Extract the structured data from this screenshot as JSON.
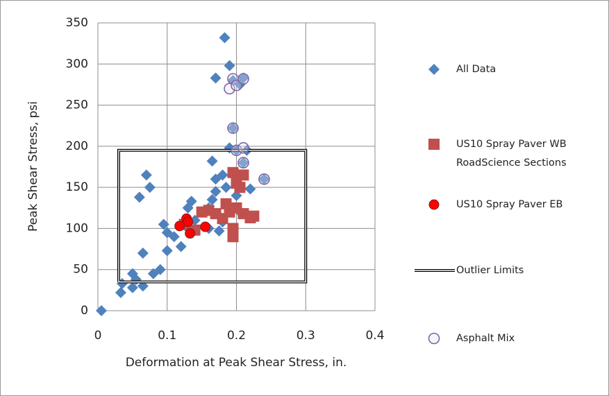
{
  "chart_data": {
    "type": "scatter",
    "x_label": "Deformation at Peak Shear Stress, in.",
    "y_label": "Peak Shear Stress, psi",
    "xlim": [
      0,
      0.4
    ],
    "xticks": [
      0,
      0.1,
      0.2,
      0.3,
      0.4
    ],
    "ylim": [
      0,
      350
    ],
    "yticks": [
      0,
      50,
      100,
      150,
      200,
      250,
      300,
      350
    ],
    "grid": true,
    "legend": "right",
    "series": [
      {
        "name": "All Data",
        "color": "#4f81bd",
        "marker": "diamond",
        "x": [
          0.005,
          0.033,
          0.035,
          0.05,
          0.05,
          0.055,
          0.065,
          0.065,
          0.06,
          0.07,
          0.075,
          0.08,
          0.09,
          0.095,
          0.1,
          0.1,
          0.11,
          0.12,
          0.13,
          0.13,
          0.135,
          0.14,
          0.15,
          0.16,
          0.16,
          0.165,
          0.165,
          0.17,
          0.17,
          0.175,
          0.18,
          0.18,
          0.183,
          0.185,
          0.19,
          0.19,
          0.17,
          0.195,
          0.195,
          0.2,
          0.2,
          0.205,
          0.21,
          0.21,
          0.215,
          0.22,
          0.24,
          0.205
        ],
        "y": [
          0,
          22,
          33,
          45,
          28,
          38,
          30,
          70,
          138,
          165,
          150,
          45,
          50,
          105,
          73,
          95,
          90,
          78,
          100,
          125,
          133,
          110,
          120,
          125,
          100,
          135,
          182,
          160,
          145,
          97,
          108,
          165,
          332,
          150,
          198,
          298,
          283,
          280,
          222,
          195,
          140,
          275,
          283,
          180,
          195,
          148,
          160,
          120
        ]
      },
      {
        "name": "US10 Spray Paver WB RoadScience Sections",
        "color": "#c0504d",
        "marker": "square",
        "x": [
          0.125,
          0.14,
          0.15,
          0.16,
          0.17,
          0.18,
          0.185,
          0.19,
          0.195,
          0.195,
          0.2,
          0.2,
          0.205,
          0.21,
          0.21,
          0.22,
          0.225,
          0.195
        ],
        "y": [
          105,
          98,
          120,
          122,
          118,
          112,
          130,
          120,
          90,
          168,
          125,
          155,
          150,
          118,
          165,
          113,
          115,
          100
        ]
      },
      {
        "name": "US10 Spray Paver EB",
        "color": "#ff0000",
        "marker": "circle",
        "x": [
          0.118,
          0.128,
          0.133,
          0.155,
          0.13
        ],
        "y": [
          103,
          112,
          94,
          102,
          108
        ]
      },
      {
        "name": "Outlier Limits",
        "color": "#000000",
        "marker": "double-line",
        "x": [
          0.03,
          0.3,
          0.3,
          0.03,
          0.03
        ],
        "y": [
          35,
          35,
          195,
          195,
          35
        ]
      },
      {
        "name": "Asphalt Mix",
        "color": "#8064a2",
        "marker": "hollow-circle",
        "x": [
          0.19,
          0.195,
          0.2,
          0.21,
          0.195,
          0.2,
          0.21,
          0.21,
          0.24
        ],
        "y": [
          270,
          282,
          274,
          282,
          222,
          195,
          198,
          180,
          160
        ]
      }
    ]
  }
}
